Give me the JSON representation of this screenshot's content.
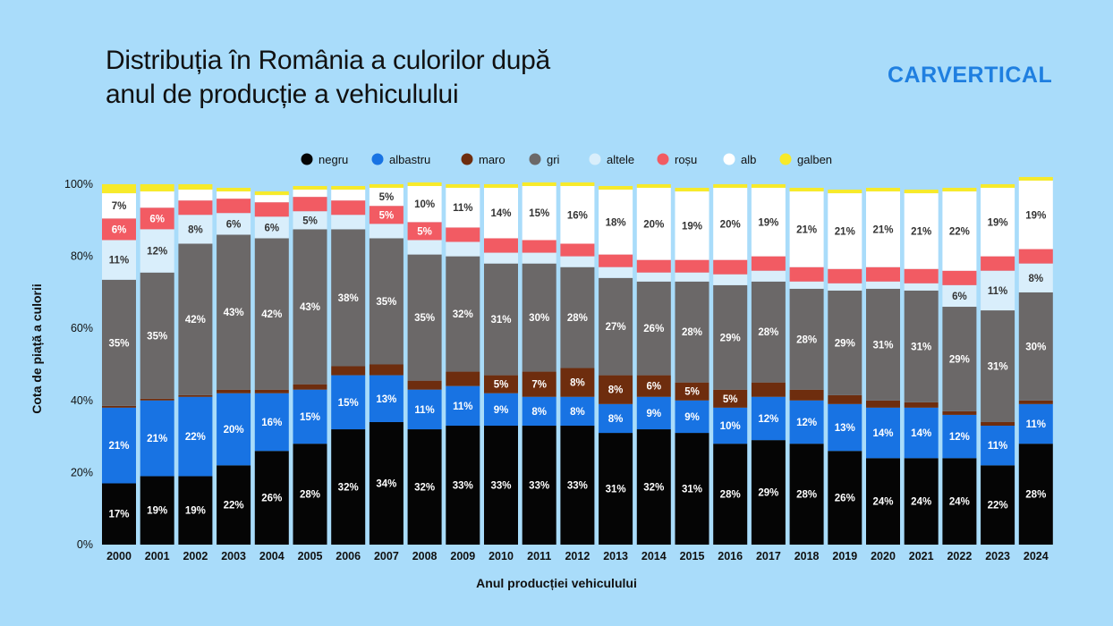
{
  "title": {
    "line1": "Distribuția în România a culorilor după",
    "line2": "anul de producție a vehiculului"
  },
  "brand": "CARVERTICAL",
  "colors": {
    "background": "#a9dcfa",
    "negru": "#050505",
    "albastru": "#1873e3",
    "maro": "#6e2d0e",
    "gri": "#6b6868",
    "altele": "#d9eefb",
    "rosu": "#f25b63",
    "alb": "#ffffff",
    "galben": "#f7ea2a"
  },
  "chart_data": {
    "type": "bar",
    "stacked": true,
    "xlabel": "Anul producției vehiculului",
    "ylabel": "Cota de piață a culorii",
    "ylim": [
      0,
      100
    ],
    "yticks": [
      "0%",
      "20%",
      "40%",
      "60%",
      "80%",
      "100%"
    ],
    "grid": false,
    "legend_position": "top",
    "categories": [
      "2000",
      "2001",
      "2002",
      "2003",
      "2004",
      "2005",
      "2006",
      "2007",
      "2008",
      "2009",
      "2010",
      "2011",
      "2012",
      "2013",
      "2014",
      "2015",
      "2016",
      "2017",
      "2018",
      "2019",
      "2020",
      "2021",
      "2022",
      "2023",
      "2024"
    ],
    "series": [
      {
        "name": "negru",
        "values": [
          17,
          19,
          19,
          22,
          26,
          28,
          32,
          34,
          32,
          33,
          33,
          33,
          33,
          31,
          32,
          31,
          28,
          29,
          28,
          26,
          24,
          24,
          24,
          22,
          28
        ],
        "labels": [
          "17%",
          "19%",
          "19%",
          "22%",
          "26%",
          "28%",
          "32%",
          "34%",
          "32%",
          "33%",
          "33%",
          "33%",
          "33%",
          "31%",
          "32%",
          "31%",
          "28%",
          "29%",
          "28%",
          "26%",
          "24%",
          "24%",
          "24%",
          "22%",
          "28%"
        ]
      },
      {
        "name": "albastru",
        "values": [
          21,
          21,
          22,
          20,
          16,
          15,
          15,
          13,
          11,
          11,
          9,
          8,
          8,
          8,
          9,
          9,
          10,
          12,
          12,
          13,
          14,
          14,
          12,
          11,
          11
        ],
        "labels": [
          "21%",
          "21%",
          "22%",
          "20%",
          "16%",
          "15%",
          "15%",
          "13%",
          "11%",
          "11%",
          "9%",
          "8%",
          "8%",
          "8%",
          "9%",
          "9%",
          "10%",
          "12%",
          "12%",
          "13%",
          "14%",
          "14%",
          "12%",
          "11%",
          "11%"
        ]
      },
      {
        "name": "maro",
        "values": [
          0.5,
          0.5,
          0.5,
          1,
          1,
          1.5,
          2.5,
          3,
          2.5,
          4,
          5,
          7,
          8,
          8,
          6,
          5,
          5,
          4,
          3,
          2.5,
          2,
          1.5,
          1,
          1,
          1
        ],
        "labels": [
          "",
          "",
          "",
          "",
          "",
          "",
          "",
          "",
          "",
          "",
          "5%",
          "7%",
          "8%",
          "8%",
          "6%",
          "5%",
          "5%",
          "",
          "",
          "",
          "",
          "",
          "",
          "",
          ""
        ]
      },
      {
        "name": "gri",
        "values": [
          35,
          35,
          42,
          43,
          42,
          43,
          38,
          35,
          35,
          32,
          31,
          30,
          28,
          27,
          26,
          28,
          29,
          28,
          28,
          29,
          31,
          31,
          29,
          31,
          30
        ],
        "labels": [
          "35%",
          "35%",
          "42%",
          "43%",
          "42%",
          "43%",
          "38%",
          "35%",
          "35%",
          "32%",
          "31%",
          "30%",
          "28%",
          "27%",
          "26%",
          "28%",
          "29%",
          "28%",
          "28%",
          "29%",
          "31%",
          "31%",
          "29%",
          "31%",
          "30%"
        ]
      },
      {
        "name": "altele",
        "values": [
          11,
          12,
          8,
          6,
          6,
          5,
          4,
          4,
          4,
          4,
          3,
          3,
          3,
          3,
          2.5,
          2.5,
          3,
          3,
          2,
          2,
          2,
          2,
          6,
          11,
          8
        ],
        "labels": [
          "11%",
          "12%",
          "8%",
          "6%",
          "6%",
          "5%",
          "",
          "",
          "",
          "",
          "",
          "",
          "",
          "",
          "",
          "",
          "",
          "",
          "",
          "",
          "",
          "",
          "6%",
          "11%",
          "8%"
        ]
      },
      {
        "name": "roșu",
        "values": [
          6,
          6,
          4,
          4,
          4,
          4,
          4,
          5,
          5,
          4,
          4,
          3.5,
          3.5,
          3.5,
          3.5,
          3.5,
          4,
          4,
          4,
          4,
          4,
          4,
          4,
          4,
          4
        ],
        "labels": [
          "6%",
          "6%",
          "",
          "",
          "",
          "",
          "",
          "5%",
          "5%",
          "",
          "",
          "",
          "",
          "",
          "",
          "",
          "",
          "",
          "",
          "",
          "",
          "",
          "",
          "",
          ""
        ]
      },
      {
        "name": "alb",
        "values": [
          7,
          4.5,
          3,
          2,
          2,
          2,
          3,
          5,
          10,
          11,
          14,
          15,
          16,
          18,
          20,
          19,
          20,
          19,
          21,
          21,
          21,
          21,
          22,
          19,
          19
        ],
        "labels": [
          "7%",
          "",
          "",
          "",
          "",
          "",
          "",
          "5%",
          "10%",
          "11%",
          "14%",
          "15%",
          "16%",
          "18%",
          "20%",
          "19%",
          "20%",
          "19%",
          "21%",
          "21%",
          "21%",
          "21%",
          "22%",
          "19%",
          "19%"
        ]
      },
      {
        "name": "galben",
        "values": [
          2.5,
          2,
          1.5,
          1,
          1,
          1,
          1,
          1,
          1,
          1,
          1,
          1,
          1,
          1,
          1,
          1,
          1,
          1,
          1,
          1,
          1,
          1,
          1,
          1,
          1
        ],
        "labels": [
          "",
          "",
          "",
          "",
          "",
          "",
          "",
          "",
          "",
          "",
          "",
          "",
          "",
          "",
          "",
          "",
          "",
          "",
          "",
          "",
          "",
          "",
          "",
          "",
          ""
        ]
      }
    ]
  }
}
